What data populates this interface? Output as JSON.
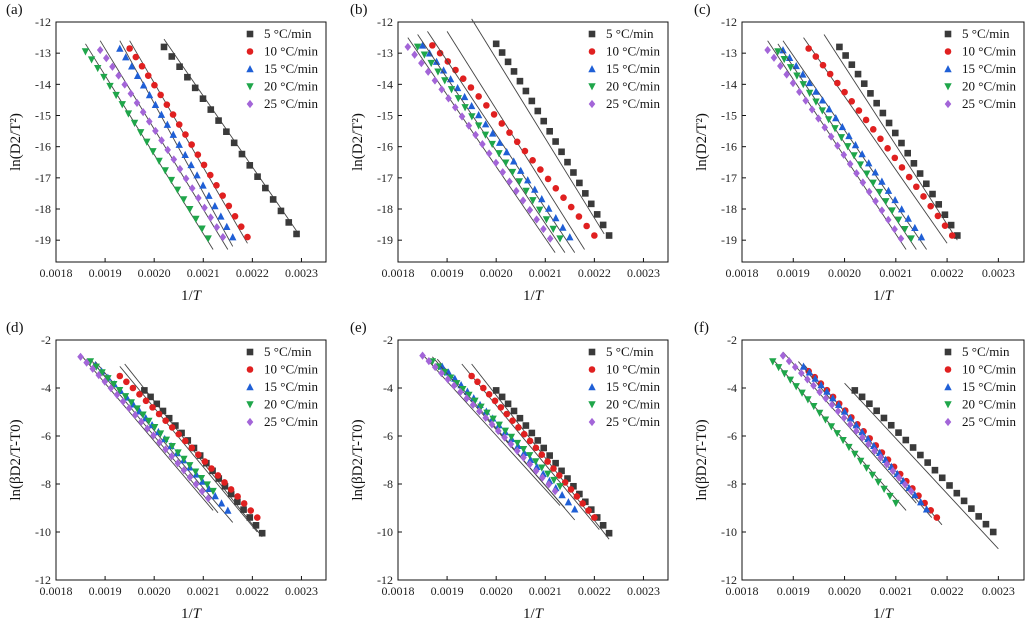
{
  "colors": {
    "5": "#3a3a3a",
    "10": "#e02020",
    "15": "#1f5fd6",
    "20": "#1fa64a",
    "25": "#a365d8",
    "fit": "#444444"
  },
  "legend": [
    "5 °C/min",
    "10 °C/min",
    "15 °C/min",
    "20 °C/min",
    "25 °C/min"
  ],
  "chart_data": [
    {
      "id": "a",
      "type": "scatter",
      "xlabel": "1/T",
      "ylabel": "ln(D2/T²)",
      "xlim": [
        0.0018,
        0.00235
      ],
      "ylim": [
        -19.7,
        -12.0
      ],
      "xticks": [
        0.0018,
        0.0019,
        0.002,
        0.0021,
        0.0022,
        0.0023
      ],
      "yticks": [
        -19,
        -18,
        -17,
        -16,
        -15,
        -14,
        -13,
        -12
      ],
      "series": [
        {
          "name": "5 °C/min",
          "marker": "square",
          "x_start": 0.00202,
          "x_end": 0.00229,
          "y_start": -12.8,
          "y_end": -18.8,
          "n": 18,
          "fit": [
            [
              0.00202,
              -12.55
            ],
            [
              0.00229,
              -18.7
            ]
          ]
        },
        {
          "name": "10 °C/min",
          "marker": "circle",
          "x_start": 0.00195,
          "x_end": 0.00219,
          "y_start": -12.85,
          "y_end": -18.9,
          "n": 20,
          "fit": [
            [
              0.00195,
              -12.6
            ],
            [
              0.00219,
              -19.1
            ]
          ]
        },
        {
          "name": "15 °C/min",
          "marker": "triangle-up",
          "x_start": 0.00193,
          "x_end": 0.00216,
          "y_start": -12.85,
          "y_end": -18.9,
          "n": 20,
          "fit": [
            [
              0.00193,
              -12.6
            ],
            [
              0.00216,
              -19.2
            ]
          ]
        },
        {
          "name": "20 °C/min",
          "marker": "triangle-down",
          "x_start": 0.00186,
          "x_end": 0.00211,
          "y_start": -12.95,
          "y_end": -18.95,
          "n": 21,
          "fit": [
            [
              0.00186,
              -12.7
            ],
            [
              0.00212,
              -19.3
            ]
          ]
        },
        {
          "name": "25 °C/min",
          "marker": "diamond",
          "x_start": 0.00189,
          "x_end": 0.00214,
          "y_start": -12.9,
          "y_end": -18.9,
          "n": 21,
          "fit": [
            [
              0.00189,
              -12.6
            ],
            [
              0.00215,
              -19.3
            ]
          ]
        }
      ]
    },
    {
      "id": "b",
      "type": "scatter",
      "xlabel": "1/T",
      "ylabel": "ln(D2/T²)",
      "xlim": [
        0.0018,
        0.00235
      ],
      "ylim": [
        -19.7,
        -12.0
      ],
      "xticks": [
        0.0018,
        0.0019,
        0.002,
        0.0021,
        0.0022,
        0.0023
      ],
      "yticks": [
        -19,
        -18,
        -17,
        -16,
        -15,
        -14,
        -13,
        -12
      ],
      "series": [
        {
          "name": "5 °C/min",
          "marker": "square",
          "x_start": 0.002,
          "x_end": 0.00223,
          "y_start": -12.7,
          "y_end": -18.85,
          "n": 20,
          "fit": [
            [
              0.00195,
              -11.9
            ],
            [
              0.00222,
              -18.8
            ]
          ]
        },
        {
          "name": "10 °C/min",
          "marker": "circle",
          "x_start": 0.00187,
          "x_end": 0.0022,
          "y_start": -12.75,
          "y_end": -18.85,
          "n": 22,
          "fit": [
            [
              0.0019,
              -12.3
            ],
            [
              0.00218,
              -19.3
            ]
          ]
        },
        {
          "name": "15 °C/min",
          "marker": "triangle-up",
          "x_start": 0.00185,
          "x_end": 0.00215,
          "y_start": -12.75,
          "y_end": -18.9,
          "n": 22,
          "fit": [
            [
              0.00186,
              -12.3
            ],
            [
              0.00216,
              -19.4
            ]
          ]
        },
        {
          "name": "20 °C/min",
          "marker": "triangle-down",
          "x_start": 0.00184,
          "x_end": 0.00213,
          "y_start": -12.8,
          "y_end": -18.95,
          "n": 22,
          "fit": [
            [
              0.00184,
              -12.4
            ],
            [
              0.00214,
              -19.4
            ]
          ]
        },
        {
          "name": "25 °C/min",
          "marker": "diamond",
          "x_start": 0.00182,
          "x_end": 0.00211,
          "y_start": -12.8,
          "y_end": -18.95,
          "n": 22,
          "fit": [
            [
              0.00182,
              -12.5
            ],
            [
              0.00212,
              -19.4
            ]
          ]
        }
      ]
    },
    {
      "id": "c",
      "type": "scatter",
      "xlabel": "1/T",
      "ylabel": "ln(D2/T²)",
      "xlim": [
        0.0018,
        0.00235
      ],
      "ylim": [
        -19.7,
        -12.0
      ],
      "xticks": [
        0.0018,
        0.0019,
        0.002,
        0.0021,
        0.0022,
        0.0023
      ],
      "yticks": [
        -19,
        -18,
        -17,
        -16,
        -15,
        -14,
        -13,
        -12
      ],
      "series": [
        {
          "name": "5 °C/min",
          "marker": "square",
          "x_start": 0.00199,
          "x_end": 0.00222,
          "y_start": -12.8,
          "y_end": -18.85,
          "n": 20,
          "fit": [
            [
              0.00196,
              -12.4
            ],
            [
              0.00222,
              -19.0
            ]
          ]
        },
        {
          "name": "10 °C/min",
          "marker": "circle",
          "x_start": 0.00193,
          "x_end": 0.00221,
          "y_start": -12.85,
          "y_end": -18.85,
          "n": 21,
          "fit": [
            [
              0.00192,
              -12.5
            ],
            [
              0.0022,
              -19.1
            ]
          ]
        },
        {
          "name": "15 °C/min",
          "marker": "triangle-up",
          "x_start": 0.00188,
          "x_end": 0.00215,
          "y_start": -12.9,
          "y_end": -18.9,
          "n": 22,
          "fit": [
            [
              0.00188,
              -12.6
            ],
            [
              0.00216,
              -19.3
            ]
          ]
        },
        {
          "name": "20 °C/min",
          "marker": "triangle-down",
          "x_start": 0.00187,
          "x_end": 0.00213,
          "y_start": -12.95,
          "y_end": -18.95,
          "n": 22,
          "fit": [
            [
              0.00187,
              -12.7
            ],
            [
              0.00214,
              -19.3
            ]
          ]
        },
        {
          "name": "25 °C/min",
          "marker": "diamond",
          "x_start": 0.00185,
          "x_end": 0.00211,
          "y_start": -12.9,
          "y_end": -18.95,
          "n": 22,
          "fit": [
            [
              0.00185,
              -12.6
            ],
            [
              0.00212,
              -19.3
            ]
          ]
        }
      ]
    },
    {
      "id": "d",
      "type": "scatter",
      "xlabel": "1/T",
      "ylabel": "ln(βD2/T-T0)",
      "xlim": [
        0.0018,
        0.00235
      ],
      "ylim": [
        -12,
        -2
      ],
      "xticks": [
        0.0018,
        0.0019,
        0.002,
        0.0021,
        0.0022,
        0.0023
      ],
      "yticks": [
        -12,
        -10,
        -8,
        -6,
        -4,
        -2
      ],
      "series": [
        {
          "name": "5 °C/min",
          "marker": "square",
          "x_start": 0.00198,
          "x_end": 0.00222,
          "y_start": -4.1,
          "y_end": -10.05,
          "n": 20,
          "fit": [
            [
              0.00194,
              -3.0
            ],
            [
              0.00222,
              -10.2
            ]
          ]
        },
        {
          "name": "10 °C/min",
          "marker": "circle",
          "x_start": 0.00193,
          "x_end": 0.00221,
          "y_start": -3.5,
          "y_end": -9.4,
          "n": 22,
          "fit": [
            [
              0.00193,
              -3.1
            ],
            [
              0.00221,
              -10.0
            ]
          ]
        },
        {
          "name": "15 °C/min",
          "marker": "triangle-up",
          "x_start": 0.00188,
          "x_end": 0.00215,
          "y_start": -3.05,
          "y_end": -9.1,
          "n": 22,
          "fit": [
            [
              0.00188,
              -2.9
            ],
            [
              0.00216,
              -9.6
            ]
          ]
        },
        {
          "name": "20 °C/min",
          "marker": "triangle-down",
          "x_start": 0.00187,
          "x_end": 0.00212,
          "y_start": -2.9,
          "y_end": -8.3,
          "n": 22,
          "fit": [
            [
              0.00187,
              -2.8
            ],
            [
              0.00213,
              -9.2
            ]
          ]
        },
        {
          "name": "25 °C/min",
          "marker": "diamond",
          "x_start": 0.00185,
          "x_end": 0.00211,
          "y_start": -2.7,
          "y_end": -8.6,
          "n": 22,
          "fit": [
            [
              0.00185,
              -2.6
            ],
            [
              0.00212,
              -9.1
            ]
          ]
        }
      ]
    },
    {
      "id": "e",
      "type": "scatter",
      "xlabel": "1/T",
      "ylabel": "ln(βD2/T-T0)",
      "xlim": [
        0.0018,
        0.00235
      ],
      "ylim": [
        -12,
        -2
      ],
      "xticks": [
        0.0018,
        0.0019,
        0.002,
        0.0021,
        0.0022,
        0.0023
      ],
      "yticks": [
        -12,
        -10,
        -8,
        -6,
        -4,
        -2
      ],
      "series": [
        {
          "name": "5 °C/min",
          "marker": "square",
          "x_start": 0.002,
          "x_end": 0.00223,
          "y_start": -4.1,
          "y_end": -10.05,
          "n": 20,
          "fit": [
            [
              0.00195,
              -3.0
            ],
            [
              0.00223,
              -10.3
            ]
          ]
        },
        {
          "name": "10 °C/min",
          "marker": "circle",
          "x_start": 0.00195,
          "x_end": 0.0022,
          "y_start": -3.5,
          "y_end": -9.4,
          "n": 22,
          "fit": [
            [
              0.00193,
              -3.0
            ],
            [
              0.00221,
              -9.9
            ]
          ]
        },
        {
          "name": "15 °C/min",
          "marker": "triangle-up",
          "x_start": 0.00189,
          "x_end": 0.00216,
          "y_start": -3.1,
          "y_end": -9.05,
          "n": 22,
          "fit": [
            [
              0.00188,
              -2.8
            ],
            [
              0.00216,
              -9.5
            ]
          ]
        },
        {
          "name": "20 °C/min",
          "marker": "triangle-down",
          "x_start": 0.00187,
          "x_end": 0.00213,
          "y_start": -2.9,
          "y_end": -8.1,
          "n": 22,
          "fit": [
            [
              0.00187,
              -2.7
            ],
            [
              0.00214,
              -9.0
            ]
          ]
        },
        {
          "name": "25 °C/min",
          "marker": "diamond",
          "x_start": 0.00185,
          "x_end": 0.00212,
          "y_start": -2.65,
          "y_end": -8.3,
          "n": 22,
          "fit": [
            [
              0.00185,
              -2.6
            ],
            [
              0.00213,
              -8.9
            ]
          ]
        }
      ]
    },
    {
      "id": "f",
      "type": "scatter",
      "xlabel": "1/T",
      "ylabel": "ln(βD2/T-T0)",
      "xlim": [
        0.0018,
        0.00235
      ],
      "ylim": [
        -12,
        -2
      ],
      "xticks": [
        0.0018,
        0.0019,
        0.002,
        0.0021,
        0.0022,
        0.0023
      ],
      "yticks": [
        -12,
        -10,
        -8,
        -6,
        -4,
        -2
      ],
      "series": [
        {
          "name": "5 °C/min",
          "marker": "square",
          "x_start": 0.00202,
          "x_end": 0.00229,
          "y_start": -4.1,
          "y_end": -10.0,
          "n": 20,
          "fit": [
            [
              0.002,
              -3.8
            ],
            [
              0.0023,
              -10.7
            ]
          ]
        },
        {
          "name": "10 °C/min",
          "marker": "circle",
          "x_start": 0.00193,
          "x_end": 0.00218,
          "y_start": -3.3,
          "y_end": -9.4,
          "n": 22,
          "fit": [
            [
              0.00192,
              -3.0
            ],
            [
              0.00219,
              -9.7
            ]
          ]
        },
        {
          "name": "15 °C/min",
          "marker": "triangle-up",
          "x_start": 0.00192,
          "x_end": 0.00216,
          "y_start": -3.1,
          "y_end": -9.05,
          "n": 22,
          "fit": [
            [
              0.00191,
              -2.9
            ],
            [
              0.00217,
              -9.4
            ]
          ]
        },
        {
          "name": "20 °C/min",
          "marker": "triangle-down",
          "x_start": 0.00186,
          "x_end": 0.0021,
          "y_start": -2.9,
          "y_end": -8.8,
          "n": 22,
          "fit": [
            [
              0.00186,
              -2.8
            ],
            [
              0.00212,
              -9.1
            ]
          ]
        },
        {
          "name": "25 °C/min",
          "marker": "diamond",
          "x_start": 0.00188,
          "x_end": 0.00213,
          "y_start": -2.65,
          "y_end": -8.3,
          "n": 22,
          "fit": [
            [
              0.00188,
              -2.5
            ],
            [
              0.00214,
              -8.8
            ]
          ]
        }
      ]
    }
  ]
}
